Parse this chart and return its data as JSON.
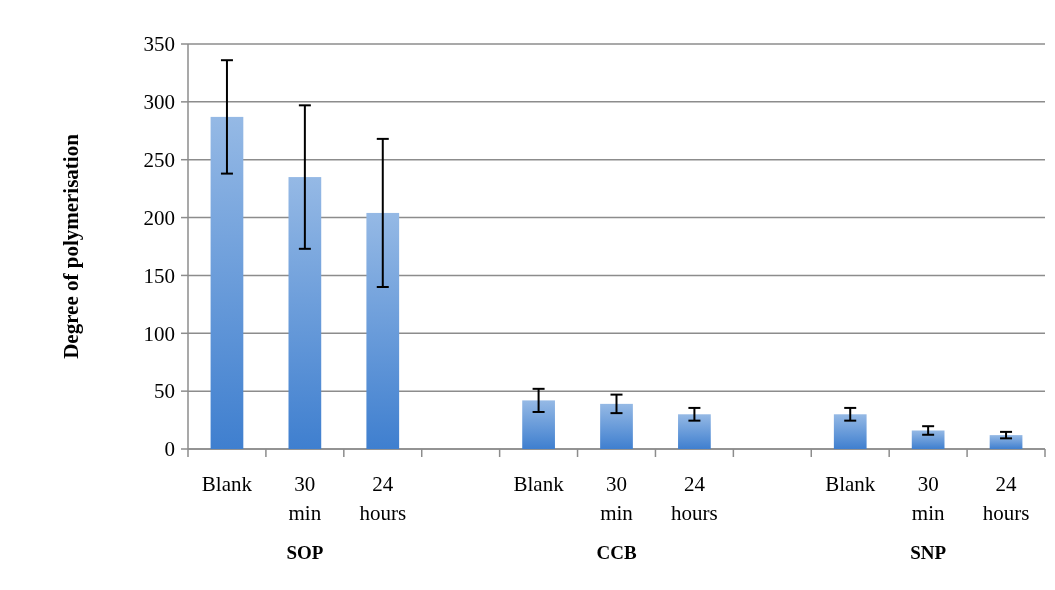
{
  "chart_data": {
    "type": "bar",
    "ylabel": "Degree of polymerisation",
    "categories": [
      "Blank",
      "30 min",
      "24 hours",
      null,
      "Blank",
      "30 min",
      "24 hours",
      null,
      "Blank",
      "30 min",
      "24 hours"
    ],
    "values": [
      287,
      235,
      204,
      null,
      42,
      39,
      30,
      null,
      30,
      16,
      12
    ],
    "errors": [
      49,
      62,
      64,
      null,
      10,
      8,
      5.5,
      null,
      5.5,
      3.7,
      2.8
    ],
    "color": "#3f7fcf",
    "ylim": [
      0,
      350
    ],
    "yticks": [
      0,
      50,
      100,
      150,
      200,
      250,
      300,
      350
    ],
    "grid": "y",
    "annotations": [
      "SOP",
      "CCB",
      "SNP"
    ]
  }
}
